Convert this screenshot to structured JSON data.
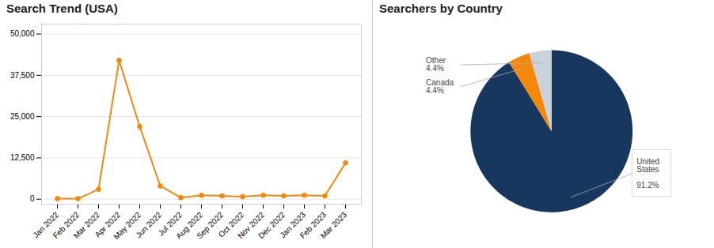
{
  "chart_data": [
    {
      "type": "line",
      "title": "Search Trend (USA)",
      "categories": [
        "Jan 2022",
        "Feb 2022",
        "Mar 2022",
        "Apr 2022",
        "May 2022",
        "Jun 2022",
        "Jul 2022",
        "Aug 2022",
        "Sep 2022",
        "Oct 2022",
        "Nov 2022",
        "Dec 2022",
        "Jan 2023",
        "Feb 2023",
        "Mar 2023"
      ],
      "values": [
        200,
        150,
        3000,
        42000,
        22000,
        4000,
        500,
        1200,
        1000,
        800,
        1200,
        1000,
        1200,
        1000,
        11000
      ],
      "color": "#F5880A",
      "marker": "circle",
      "ylim": [
        -1500,
        53000
      ],
      "yticks": [
        0,
        {
          "value": 12500,
          "label": "12,500"
        },
        {
          "value": 25000,
          "label": "25,000"
        },
        {
          "value": 37500,
          "label": "37,500"
        },
        {
          "value": 50000,
          "label": "50,000"
        }
      ],
      "grid": true
    },
    {
      "type": "pie",
      "title": "Searchers by Country",
      "values": [
        91.2,
        4.4,
        4.4
      ],
      "colors": [
        "#17375e",
        "#F5880A",
        "#c8d3dc"
      ],
      "value_labels": [
        "United\nStates\n\n91.2%",
        "Canada\n4.4%",
        "Other\n4.4%"
      ],
      "data_labels": true
    }
  ]
}
